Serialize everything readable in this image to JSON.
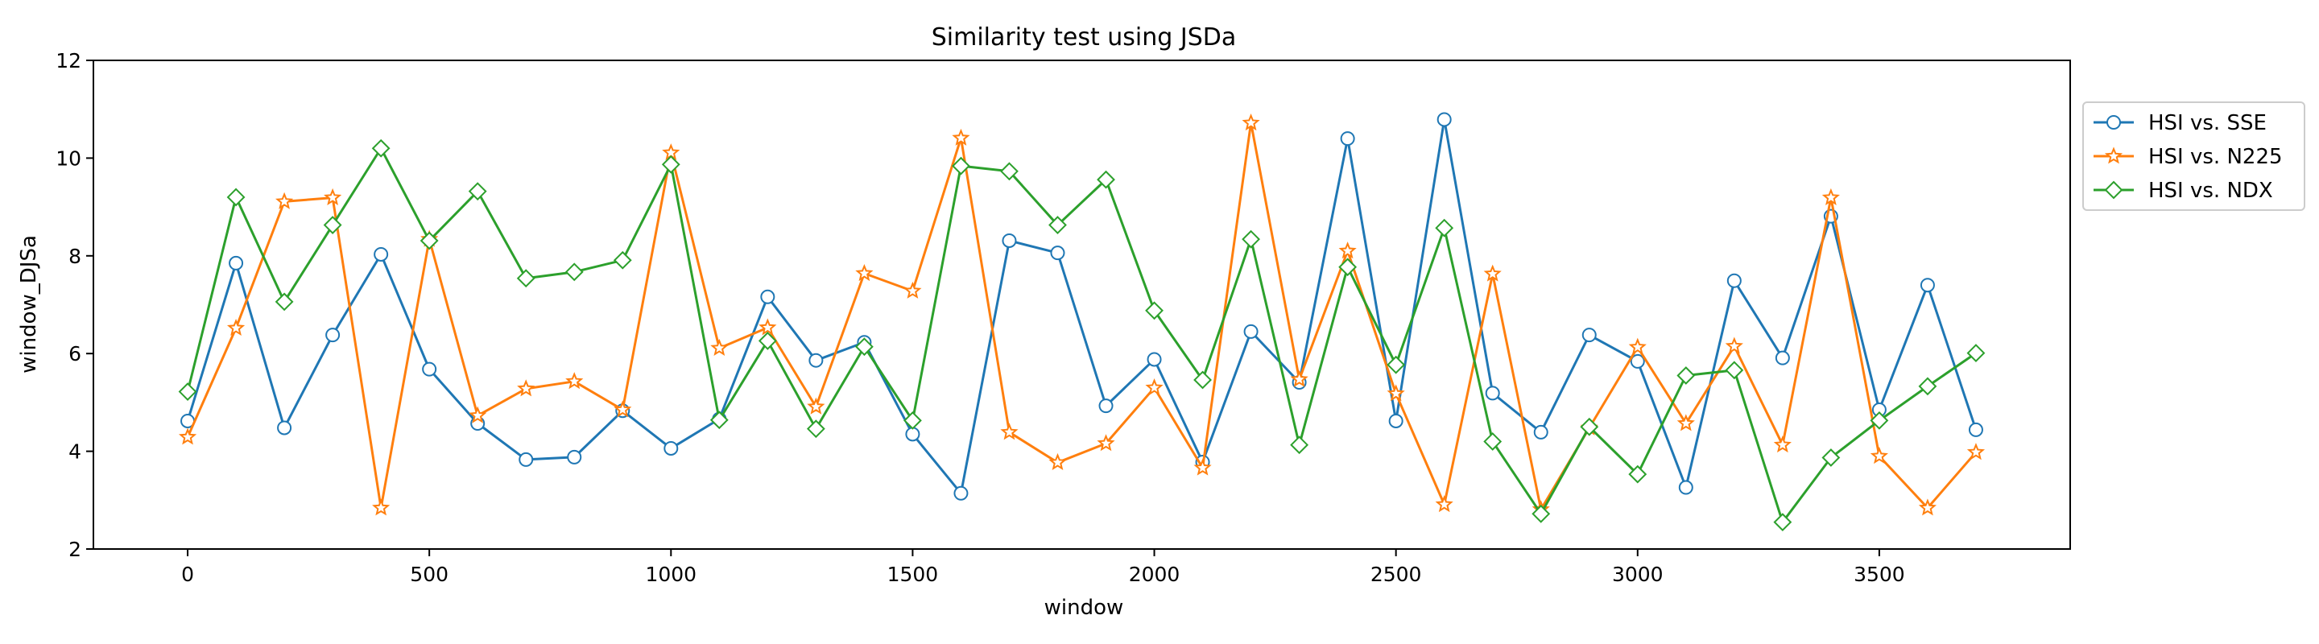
{
  "chart_data": {
    "type": "line",
    "title": "Similarity test using JSDa",
    "xlabel": "window",
    "ylabel": "window_DJSa",
    "xlim": [
      -195,
      3895
    ],
    "ylim": [
      2,
      12
    ],
    "xticks": [
      0,
      500,
      1000,
      1500,
      2000,
      2500,
      3000,
      3500
    ],
    "yticks": [
      2,
      4,
      6,
      8,
      10,
      12
    ],
    "grid": false,
    "legend_position": "outside-right",
    "x": [
      0,
      100,
      200,
      300,
      400,
      500,
      600,
      700,
      800,
      900,
      1000,
      1100,
      1200,
      1300,
      1400,
      1500,
      1600,
      1700,
      1800,
      1900,
      2000,
      2100,
      2200,
      2300,
      2400,
      2500,
      2600,
      2700,
      2800,
      2900,
      3000,
      3100,
      3200,
      3300,
      3400,
      3500,
      3600,
      3700
    ],
    "series": [
      {
        "name": "HSI vs. SSE",
        "color": "#1f77b4",
        "marker": "circle",
        "values": [
          4.62,
          7.85,
          4.48,
          6.38,
          8.03,
          5.68,
          4.57,
          3.83,
          3.88,
          4.83,
          4.06,
          4.66,
          7.16,
          5.86,
          6.23,
          4.35,
          3.14,
          8.31,
          8.06,
          4.93,
          5.88,
          3.78,
          6.45,
          5.41,
          10.4,
          4.62,
          10.79,
          5.19,
          4.39,
          6.38,
          5.84,
          3.26,
          7.49,
          5.91,
          8.81,
          4.85,
          7.4,
          4.44
        ]
      },
      {
        "name": "HSI vs. N225",
        "color": "#ff7f0e",
        "marker": "star",
        "values": [
          4.29,
          6.52,
          9.11,
          9.19,
          2.84,
          8.34,
          4.73,
          5.28,
          5.43,
          4.85,
          10.11,
          6.11,
          6.53,
          4.91,
          7.64,
          7.28,
          10.41,
          4.39,
          3.77,
          4.16,
          5.3,
          3.66,
          10.72,
          5.47,
          8.1,
          5.18,
          2.91,
          7.63,
          2.81,
          4.48,
          6.13,
          4.57,
          6.15,
          4.13,
          9.19,
          3.9,
          2.84,
          3.98
        ]
      },
      {
        "name": "HSI vs. NDX",
        "color": "#2ca02c",
        "marker": "diamond",
        "values": [
          5.22,
          9.2,
          7.06,
          8.63,
          10.2,
          8.31,
          9.32,
          7.54,
          7.67,
          7.91,
          9.87,
          4.64,
          6.26,
          4.46,
          6.14,
          4.63,
          9.84,
          9.73,
          8.63,
          9.56,
          6.88,
          5.46,
          8.34,
          4.13,
          7.77,
          5.77,
          8.57,
          4.2,
          2.72,
          4.5,
          3.53,
          5.55,
          5.66,
          2.55,
          3.87,
          4.63,
          5.33,
          6.01
        ]
      }
    ]
  }
}
